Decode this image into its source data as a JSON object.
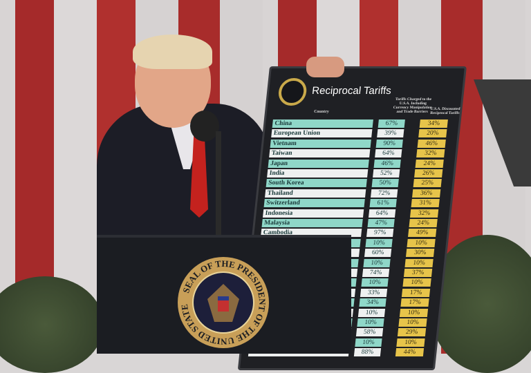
{
  "board": {
    "title": "Reciprocal Tariffs",
    "headers": {
      "country": "Country",
      "charged": "Tariffs Charged to the U.S.A. Including Currency Manipulation and Trade Barriers",
      "reciprocal": "U.S.A. Discounted Reciprocal Tariffs"
    },
    "rows": [
      {
        "country": "China",
        "charged": "67%",
        "reciprocal": "34%"
      },
      {
        "country": "European Union",
        "charged": "39%",
        "reciprocal": "20%"
      },
      {
        "country": "Vietnam",
        "charged": "90%",
        "reciprocal": "46%"
      },
      {
        "country": "Taiwan",
        "charged": "64%",
        "reciprocal": "32%"
      },
      {
        "country": "Japan",
        "charged": "46%",
        "reciprocal": "24%"
      },
      {
        "country": "India",
        "charged": "52%",
        "reciprocal": "26%"
      },
      {
        "country": "South Korea",
        "charged": "50%",
        "reciprocal": "25%"
      },
      {
        "country": "Thailand",
        "charged": "72%",
        "reciprocal": "36%"
      },
      {
        "country": "Switzerland",
        "charged": "61%",
        "reciprocal": "31%"
      },
      {
        "country": "Indonesia",
        "charged": "64%",
        "reciprocal": "32%"
      },
      {
        "country": "Malaysia",
        "charged": "47%",
        "reciprocal": "24%"
      },
      {
        "country": "Cambodia",
        "charged": "97%",
        "reciprocal": "49%"
      },
      {
        "country": "",
        "charged": "10%",
        "reciprocal": "10%"
      },
      {
        "country": "",
        "charged": "60%",
        "reciprocal": "30%"
      },
      {
        "country": "",
        "charged": "10%",
        "reciprocal": "10%"
      },
      {
        "country": "",
        "charged": "74%",
        "reciprocal": "37%"
      },
      {
        "country": "",
        "charged": "10%",
        "reciprocal": "10%"
      },
      {
        "country": "",
        "charged": "33%",
        "reciprocal": "17%"
      },
      {
        "country": "",
        "charged": "34%",
        "reciprocal": "17%"
      },
      {
        "country": "",
        "charged": "10%",
        "reciprocal": "10%"
      },
      {
        "country": "",
        "charged": "10%",
        "reciprocal": "10%"
      },
      {
        "country": "",
        "charged": "58%",
        "reciprocal": "29%"
      },
      {
        "country": "",
        "charged": "10%",
        "reciprocal": "10%"
      },
      {
        "country": "",
        "charged": "88%",
        "reciprocal": "44%"
      }
    ],
    "colors": {
      "teal": "#8fd7c8",
      "white": "#eef0f0",
      "gold": "#e7c44a",
      "board": "#1f2024"
    }
  },
  "podium_seal": {
    "text": "SEAL OF THE PRESIDENT OF THE UNITED STATES",
    "icon": "presidential-seal-icon"
  }
}
